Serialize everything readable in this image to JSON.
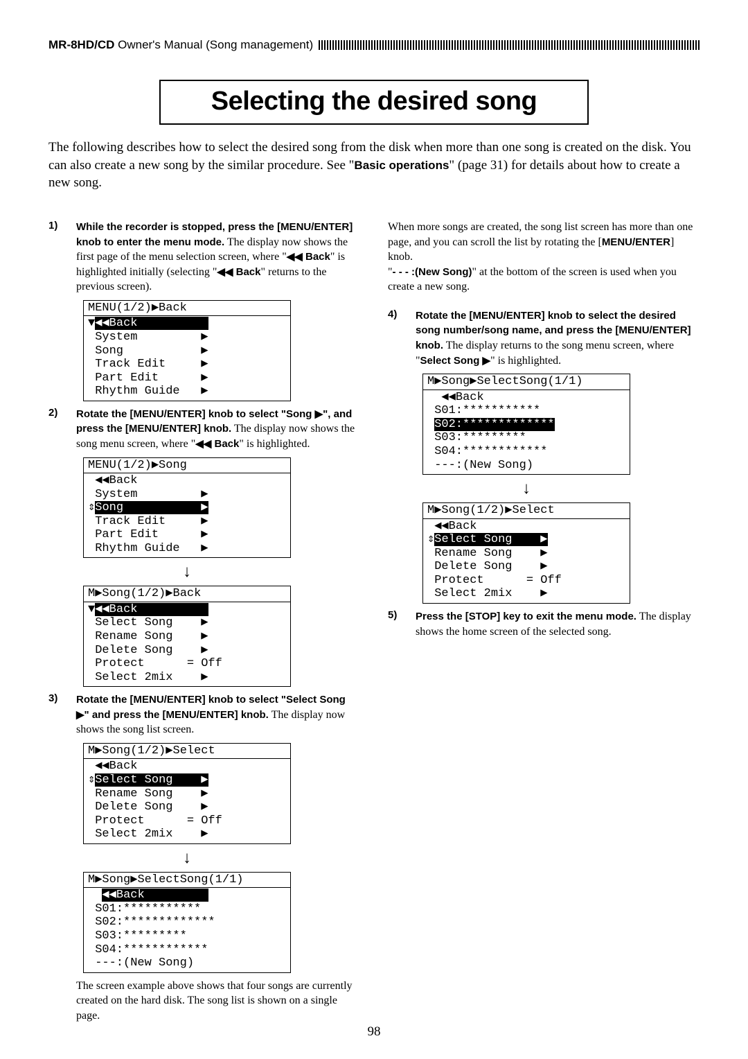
{
  "header": {
    "product": "MR-8HD/CD",
    "section": " Owner's Manual (Song management)"
  },
  "title": "Selecting the desired song",
  "intro_parts": {
    "p1": "The following describes how to select the desired song from the disk when more than one song is created on the disk. You can also create a new song by the similar procedure. See \"",
    "p2_bold": "Basic operations",
    "p3": "\" (page 31) for details about how to create a new song."
  },
  "col1": {
    "step1": {
      "num": "1)",
      "bold": "While the recorder is stopped, press the [MENU/ENTER] knob to enter the menu mode.",
      "t1": "The display now shows the first page of the menu selection screen, where \"",
      "t2_bold": "◀◀ Back",
      "t3": "\" is highlighted initially (selecting \"",
      "t4_bold": "◀◀ Back",
      "t5": "\" returns to the previous screen)."
    },
    "lcd1": {
      "head": "MENU(1/2)▶Back",
      "l1a": "▼",
      "l1b": "◀◀Back          ",
      "l2": " System         ▶",
      "l3": " Song           ▶",
      "l4": " Track Edit     ▶",
      "l5": " Part Edit      ▶",
      "l6": " Rhythm Guide   ▶"
    },
    "step2": {
      "num": "2)",
      "bold": "Rotate the [MENU/ENTER] knob to select \"Song ▶\", and press the [MENU/ENTER] knob.",
      "t1": "The display now shows the song menu screen, where \"",
      "t2_bold": "◀◀ Back",
      "t3": "\" is highlighted."
    },
    "lcd2": {
      "head": "MENU(1/2)▶Song",
      "l1": " ◀◀Back",
      "l2": " System         ▶",
      "l3a": "⇕",
      "l3b": "Song           ▶",
      "l4": " Track Edit     ▶",
      "l5": " Part Edit      ▶",
      "l6": " Rhythm Guide   ▶"
    },
    "lcd3": {
      "head": "M▶Song(1/2)▶Back",
      "l1a": "▼",
      "l1b": "◀◀Back          ",
      "l2": " Select Song    ▶",
      "l3": " Rename Song    ▶",
      "l4": " Delete Song    ▶",
      "l5": " Protect      = Off",
      "l6": " Select 2mix    ▶"
    },
    "step3": {
      "num": "3)",
      "bold": "Rotate the [MENU/ENTER] knob to select \"Select Song ▶\" and press the [MENU/ENTER] knob.",
      "t1": "The display now shows the song list screen."
    },
    "lcd4": {
      "head": "M▶Song(1/2)▶Select",
      "l1": " ◀◀Back",
      "l2a": "⇕",
      "l2b": "Select Song    ▶",
      "l3": " Rename Song    ▶",
      "l4": " Delete Song    ▶",
      "l5": " Protect      = Off",
      "l6": " Select 2mix    ▶"
    },
    "lcd5": {
      "head": "M▶Song▶SelectSong(1/1)",
      "l1a": "  ",
      "l1b": "◀◀Back         ",
      "l2": " S01:***********",
      "l3": " S02:*************",
      "l4": " S03:*********",
      "l5": " S04:************",
      "l6": " ---:(New Song)"
    },
    "after_lcd5": "The screen example above shows that four songs are currently created on the hard disk. The song list is shown on a single page."
  },
  "col2": {
    "top_t1": "When more songs are created, the song list screen has more than one page, and you can scroll the list by rotating the [",
    "top_t2_bold": "MENU/ENTER",
    "top_t3": "] knob.",
    "top_t4": "\"",
    "top_t5_bold": "- - - :(New Song)",
    "top_t6": "\" at the bottom of the screen is used when you create a new song.",
    "step4": {
      "num": "4)",
      "bold": "Rotate the [MENU/ENTER] knob to select the desired song number/song name, and press the [MENU/ENTER] knob.",
      "t1": "The display returns to the song menu screen, where \"",
      "t2_bold": "Select Song ▶",
      "t3": "\" is highlighted."
    },
    "lcd6": {
      "head": "M▶Song▶SelectSong(1/1)",
      "l1": "  ◀◀Back",
      "l2": " S01:***********",
      "l3a": " ",
      "l3b": "S02:*************",
      "l4": " S03:*********",
      "l5": " S04:************",
      "l6": " ---:(New Song)"
    },
    "lcd7": {
      "head": "M▶Song(1/2)▶Select",
      "l1": " ◀◀Back",
      "l2a": "⇕",
      "l2b": "Select Song    ▶",
      "l3": " Rename Song    ▶",
      "l4": " Delete Song    ▶",
      "l5": " Protect      = Off",
      "l6": " Select 2mix    ▶"
    },
    "step5": {
      "num": "5)",
      "bold": "Press the [STOP] key to exit the menu mode.",
      "t1": "The display shows the home screen of the selected song."
    }
  },
  "page_number": "98"
}
